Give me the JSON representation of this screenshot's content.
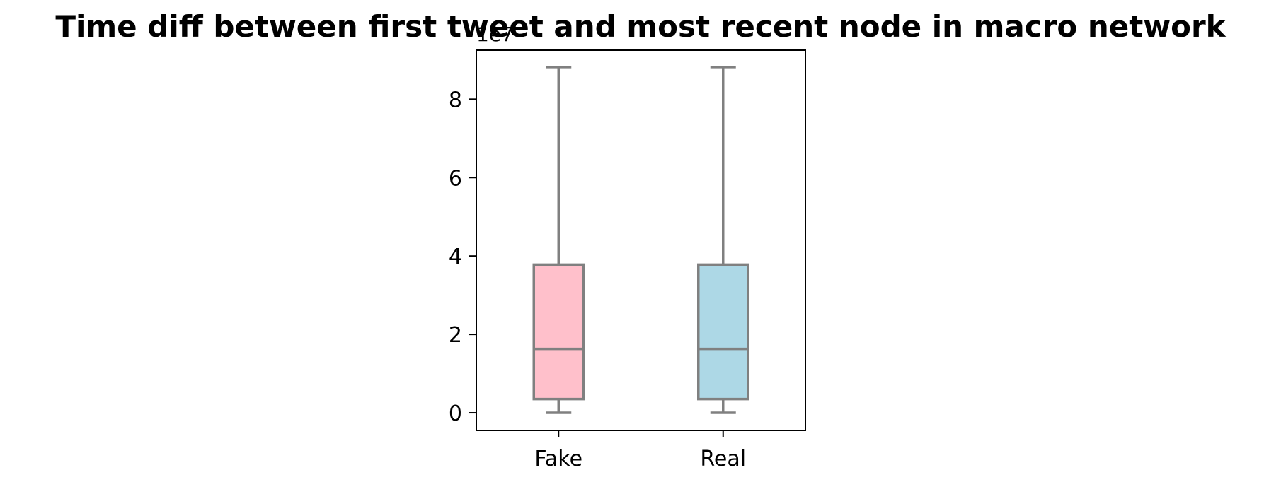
{
  "chart_data": {
    "type": "box",
    "title": "Time diff between first tweet and  most recent node in macro network",
    "xlabel": "",
    "ylabel": "",
    "y_offset_label": "1e7",
    "ylim": [
      -0.45,
      9.25
    ],
    "yticks": [
      0,
      2,
      4,
      6,
      8
    ],
    "grid": false,
    "categories": [
      "Fake",
      "Real"
    ],
    "boxes": [
      {
        "category": "Fake",
        "whisker_low": 0.0,
        "q1": 0.35,
        "median": 1.63,
        "q3": 3.78,
        "whisker_high": 8.82,
        "fill_color": "#ffc0cb"
      },
      {
        "category": "Real",
        "whisker_low": 0.0,
        "q1": 0.35,
        "median": 1.63,
        "q3": 3.78,
        "whisker_high": 8.82,
        "fill_color": "#add8e6"
      }
    ],
    "line_color": "#808080",
    "axis_color": "#000000"
  }
}
